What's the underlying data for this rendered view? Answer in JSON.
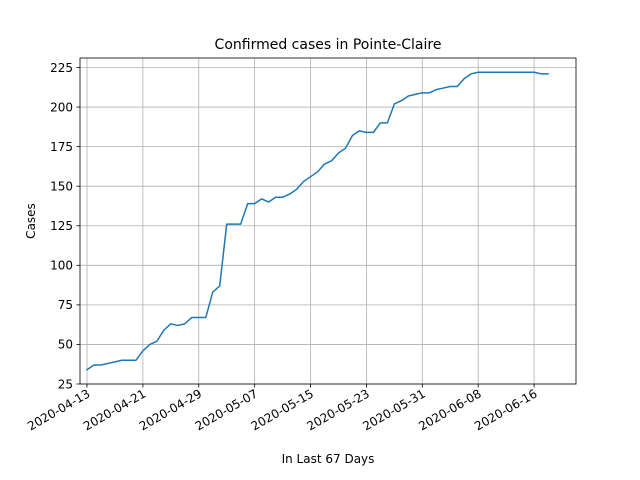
{
  "chart_data": {
    "type": "line",
    "title": "Confirmed cases in Pointe-Claire",
    "xlabel": "In Last 67 Days",
    "ylabel": "Cases",
    "grid": true,
    "xlim": [
      "2020-04-12",
      "2020-06-22"
    ],
    "ylim": [
      25,
      231
    ],
    "x_ticks": [
      "2020-04-13",
      "2020-04-21",
      "2020-04-29",
      "2020-05-07",
      "2020-05-15",
      "2020-05-23",
      "2020-05-31",
      "2020-06-08",
      "2020-06-16"
    ],
    "y_ticks": [
      25,
      50,
      75,
      100,
      125,
      150,
      175,
      200,
      225
    ],
    "line_color": "#1f77b4",
    "series": [
      {
        "x": [
          "2020-04-13",
          "2020-04-14",
          "2020-04-15",
          "2020-04-16",
          "2020-04-17",
          "2020-04-18",
          "2020-04-19",
          "2020-04-20",
          "2020-04-21",
          "2020-04-22",
          "2020-04-23",
          "2020-04-24",
          "2020-04-25",
          "2020-04-26",
          "2020-04-27",
          "2020-04-28",
          "2020-04-29",
          "2020-04-30",
          "2020-05-01",
          "2020-05-02",
          "2020-05-03",
          "2020-05-04",
          "2020-05-05",
          "2020-05-06",
          "2020-05-07",
          "2020-05-08",
          "2020-05-09",
          "2020-05-10",
          "2020-05-11",
          "2020-05-12",
          "2020-05-13",
          "2020-05-14",
          "2020-05-15",
          "2020-05-16",
          "2020-05-17",
          "2020-05-18",
          "2020-05-19",
          "2020-05-20",
          "2020-05-21",
          "2020-05-22",
          "2020-05-23",
          "2020-05-24",
          "2020-05-25",
          "2020-05-26",
          "2020-05-27",
          "2020-05-28",
          "2020-05-29",
          "2020-05-30",
          "2020-05-31",
          "2020-06-01",
          "2020-06-02",
          "2020-06-03",
          "2020-06-04",
          "2020-06-05",
          "2020-06-06",
          "2020-06-07",
          "2020-06-08",
          "2020-06-09",
          "2020-06-10",
          "2020-06-11",
          "2020-06-12",
          "2020-06-13",
          "2020-06-14",
          "2020-06-15",
          "2020-06-16",
          "2020-06-17",
          "2020-06-18"
        ],
        "y": [
          34,
          37,
          37,
          38,
          39,
          40,
          40,
          40,
          46,
          50,
          52,
          59,
          63,
          62,
          63,
          67,
          67,
          67,
          83,
          87,
          126,
          126,
          126,
          139,
          139,
          142,
          140,
          143,
          143,
          145,
          148,
          153,
          156,
          159,
          164,
          166,
          171,
          174,
          182,
          185,
          184,
          184,
          190,
          190,
          202,
          204,
          207,
          208,
          209,
          209,
          211,
          212,
          213,
          213,
          218,
          221,
          222,
          222,
          222,
          222,
          222,
          222,
          222,
          222,
          222,
          221,
          221
        ]
      }
    ]
  }
}
